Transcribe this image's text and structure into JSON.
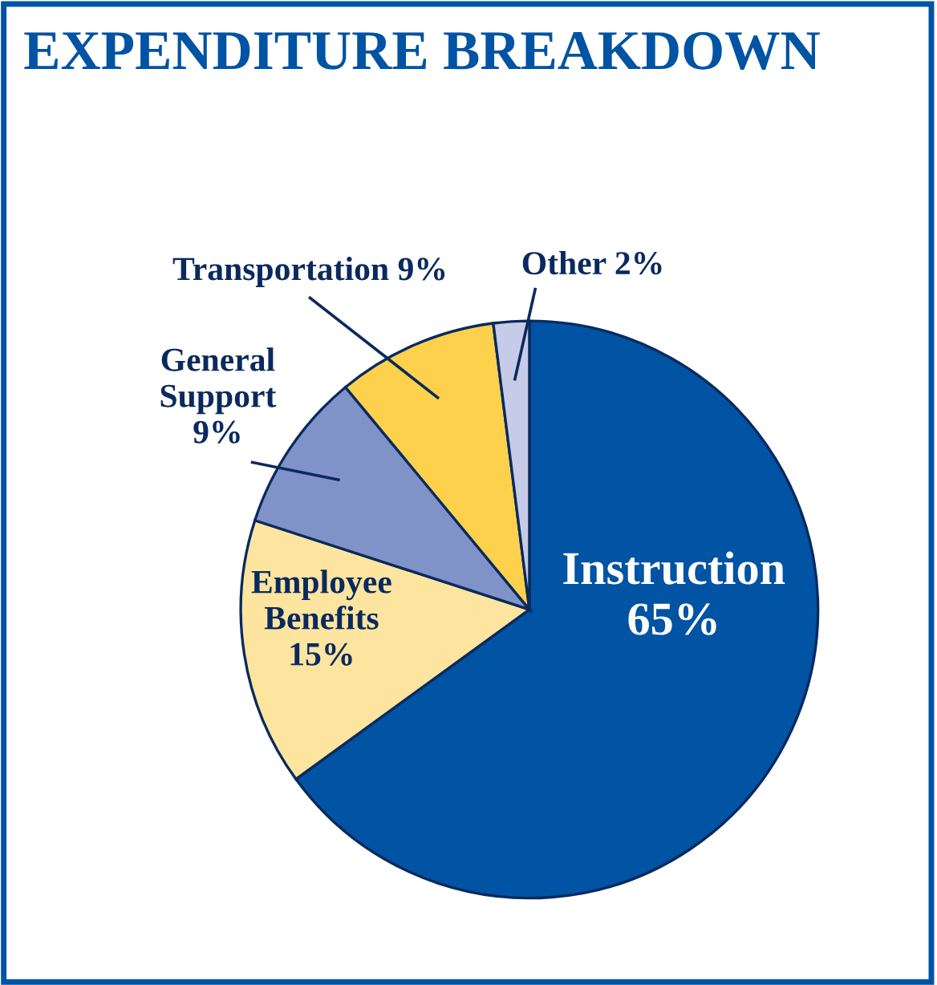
{
  "chart_data": {
    "type": "pie",
    "title": "EXPENDITURE BREAKDOWN",
    "categories": [
      "Instruction",
      "Employee Benefits",
      "General Support",
      "Transportation",
      "Other"
    ],
    "values": [
      65,
      15,
      9,
      9,
      2
    ],
    "colors": [
      "#0153a4",
      "#fde49f",
      "#8093c8",
      "#fdd14c",
      "#c6cbe7"
    ],
    "value_labels": [
      "65%",
      "15%",
      "9%",
      "9%",
      "2%"
    ],
    "legend": false
  }
}
